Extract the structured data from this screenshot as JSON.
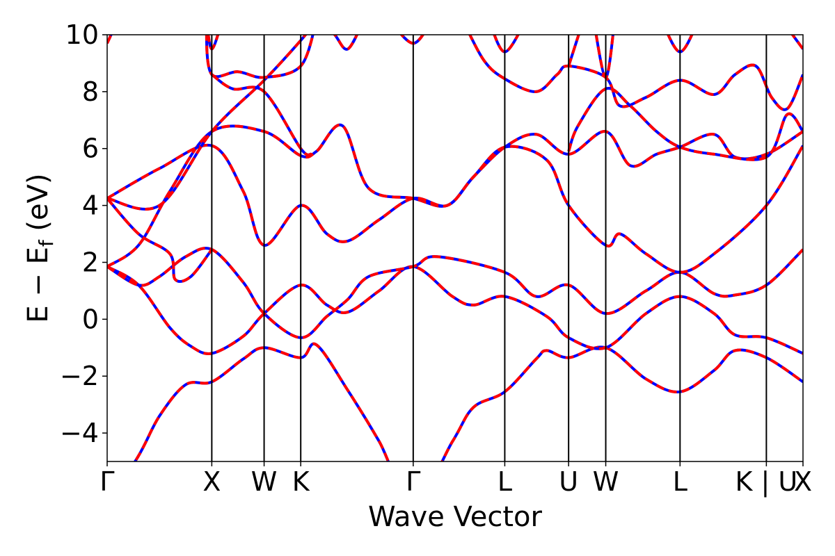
{
  "chart_data": {
    "type": "line",
    "xlabel": "Wave Vector",
    "ylabel": "E − E_f (eV)",
    "ylabel_main": "E − E",
    "ylabel_sub": "f",
    "ylabel_unit": " (eV)",
    "ylim": [
      -5,
      10
    ],
    "yticks": [
      -4,
      -2,
      0,
      2,
      4,
      6,
      8,
      10
    ],
    "ytick_labels": [
      "−4",
      "−2",
      "0",
      "2",
      "4",
      "6",
      "8",
      "10"
    ],
    "xlim": [
      0,
      13.3
    ],
    "kpoints": [
      {
        "label": "Γ",
        "x": 0.0
      },
      {
        "label": "X",
        "x": 2.0
      },
      {
        "label": "W",
        "x": 3.0
      },
      {
        "label": "K",
        "x": 3.7
      },
      {
        "label": "Γ",
        "x": 5.85
      },
      {
        "label": "L",
        "x": 7.6
      },
      {
        "label": "U",
        "x": 8.82
      },
      {
        "label": "W",
        "x": 9.53
      },
      {
        "label": "L",
        "x": 10.95
      },
      {
        "label": "K | U",
        "x": 12.6
      },
      {
        "label": "X",
        "x": 13.3
      }
    ],
    "styles": {
      "blue": "#0000ff",
      "red": "#ff0000",
      "red_dash": "dashed"
    },
    "grid": false,
    "series": [
      {
        "values": [
          [
            0,
            -6.5
          ],
          [
            0.6,
            -4.8
          ],
          [
            1.0,
            -3.4
          ],
          [
            1.5,
            -2.3
          ],
          [
            2.0,
            -2.2
          ],
          [
            2.6,
            -1.4
          ],
          [
            3.0,
            -1.0
          ],
          [
            3.7,
            -1.35
          ],
          [
            4.0,
            -0.9
          ],
          [
            4.6,
            -2.5
          ],
          [
            5.2,
            -4.3
          ],
          [
            5.85,
            -6.5
          ],
          [
            6.6,
            -4.3
          ],
          [
            7.0,
            -3.1
          ],
          [
            7.6,
            -2.55
          ],
          [
            8.2,
            -1.4
          ],
          [
            8.4,
            -1.1
          ],
          [
            8.82,
            -1.35
          ],
          [
            9.53,
            -1.0
          ],
          [
            10.3,
            -2.1
          ],
          [
            10.95,
            -2.55
          ],
          [
            11.6,
            -1.8
          ],
          [
            12.0,
            -1.1
          ],
          [
            12.6,
            -1.35
          ],
          [
            13.3,
            -2.2
          ]
        ]
      },
      {
        "values": [
          [
            0,
            1.85
          ],
          [
            0.6,
            1.2
          ],
          [
            1.2,
            -0.3
          ],
          [
            1.6,
            -0.95
          ],
          [
            2.0,
            -1.2
          ],
          [
            2.6,
            -0.6
          ],
          [
            3.0,
            0.2
          ],
          [
            3.7,
            1.2
          ],
          [
            4.2,
            0.5
          ],
          [
            4.6,
            0.25
          ],
          [
            5.2,
            1.0
          ],
          [
            5.85,
            1.85
          ],
          [
            6.6,
            0.8
          ],
          [
            7.0,
            0.5
          ],
          [
            7.6,
            0.8
          ],
          [
            8.4,
            0.1
          ],
          [
            8.82,
            -0.65
          ],
          [
            9.53,
            -1.0
          ],
          [
            10.3,
            0.2
          ],
          [
            10.95,
            0.8
          ],
          [
            11.6,
            0.2
          ],
          [
            12.0,
            -0.55
          ],
          [
            12.6,
            -0.65
          ],
          [
            13.3,
            -1.2
          ]
        ]
      },
      {
        "values": [
          [
            0,
            1.85
          ],
          [
            0.6,
            1.2
          ],
          [
            1.0,
            1.5
          ],
          [
            1.5,
            2.2
          ],
          [
            2.0,
            2.45
          ],
          [
            2.6,
            1.3
          ],
          [
            3.0,
            0.2
          ],
          [
            3.7,
            -0.65
          ],
          [
            4.2,
            0.1
          ],
          [
            4.6,
            0.7
          ],
          [
            5.0,
            1.5
          ],
          [
            5.85,
            1.85
          ],
          [
            6.3,
            2.2
          ],
          [
            7.6,
            1.65
          ],
          [
            8.2,
            0.8
          ],
          [
            8.82,
            1.2
          ],
          [
            9.53,
            0.2
          ],
          [
            10.3,
            1.0
          ],
          [
            10.95,
            1.65
          ],
          [
            11.6,
            0.9
          ],
          [
            12.0,
            0.85
          ],
          [
            12.6,
            1.2
          ],
          [
            13.3,
            2.45
          ]
        ]
      },
      {
        "values": [
          [
            0,
            1.85
          ],
          [
            0.6,
            2.6
          ],
          [
            1.2,
            4.5
          ],
          [
            2.0,
            6.6
          ],
          [
            3.0,
            6.6
          ],
          [
            3.7,
            5.75
          ],
          [
            4.0,
            5.9
          ],
          [
            4.5,
            6.8
          ],
          [
            5.0,
            4.6
          ],
          [
            5.85,
            4.25
          ],
          [
            6.5,
            4.0
          ],
          [
            7.0,
            5.0
          ],
          [
            7.6,
            6.05
          ],
          [
            8.2,
            6.5
          ],
          [
            8.82,
            5.8
          ],
          [
            9.53,
            6.6
          ],
          [
            10.0,
            5.4
          ],
          [
            10.5,
            5.8
          ],
          [
            10.95,
            6.05
          ],
          [
            11.6,
            6.5
          ],
          [
            12.0,
            5.7
          ],
          [
            12.6,
            5.8
          ],
          [
            13.3,
            6.6
          ]
        ]
      },
      {
        "values": [
          [
            0,
            4.25
          ],
          [
            0.6,
            3.0
          ],
          [
            1.2,
            2.3
          ],
          [
            1.3,
            1.4
          ],
          [
            1.6,
            1.5
          ],
          [
            2.0,
            2.45
          ]
        ]
      },
      {
        "values": [
          [
            0,
            4.25
          ],
          [
            1.0,
            5.3
          ],
          [
            2.0,
            6.1
          ],
          [
            2.6,
            4.5
          ],
          [
            3.0,
            2.6
          ],
          [
            3.7,
            4.0
          ],
          [
            4.2,
            3.0
          ],
          [
            4.6,
            2.75
          ],
          [
            5.2,
            3.5
          ],
          [
            5.85,
            4.25
          ],
          [
            6.5,
            4.0
          ],
          [
            7.0,
            5.0
          ],
          [
            7.6,
            6.05
          ],
          [
            8.4,
            5.6
          ],
          [
            8.82,
            4.0
          ],
          [
            9.53,
            2.6
          ],
          [
            9.8,
            3.0
          ],
          [
            10.3,
            2.3
          ],
          [
            10.95,
            1.65
          ],
          [
            11.6,
            2.3
          ],
          [
            12.6,
            4.0
          ],
          [
            13.3,
            6.1
          ]
        ]
      },
      {
        "values": [
          [
            0,
            4.25
          ],
          [
            1.0,
            4.0
          ],
          [
            2.0,
            6.6
          ],
          [
            3.0,
            8.4
          ],
          [
            3.7,
            9.8
          ],
          [
            4.0,
            10.5
          ]
        ]
      },
      {
        "values": [
          [
            2.0,
            10.5
          ],
          [
            1.9,
            10.0
          ],
          [
            2.0,
            8.6
          ],
          [
            2.5,
            8.7
          ],
          [
            3.0,
            8.5
          ],
          [
            3.7,
            8.9
          ],
          [
            4.0,
            10.5
          ]
        ]
      },
      {
        "values": [
          [
            1.9,
            10.5
          ],
          [
            2.0,
            9.5
          ],
          [
            2.2,
            10.5
          ]
        ]
      },
      {
        "values": [
          [
            2.0,
            8.6
          ],
          [
            2.4,
            8.1
          ],
          [
            3.0,
            8.0
          ],
          [
            3.7,
            6.0
          ],
          [
            3.9,
            5.8
          ]
        ]
      },
      {
        "values": [
          [
            4.1,
            10.5
          ],
          [
            4.35,
            10.0
          ],
          [
            4.6,
            9.5
          ],
          [
            4.9,
            10.5
          ]
        ]
      },
      {
        "values": [
          [
            0,
            9.7
          ],
          [
            0.2,
            10.5
          ]
        ]
      },
      {
        "values": [
          [
            5.4,
            10.5
          ],
          [
            5.85,
            9.7
          ],
          [
            6.2,
            10.5
          ]
        ]
      },
      {
        "values": [
          [
            6.8,
            10.5
          ],
          [
            7.2,
            9.1
          ],
          [
            7.6,
            8.45
          ],
          [
            8.2,
            8.0
          ],
          [
            8.6,
            8.6
          ],
          [
            8.82,
            8.9
          ],
          [
            9.53,
            8.5
          ],
          [
            9.8,
            7.5
          ],
          [
            10.3,
            7.8
          ],
          [
            10.95,
            8.4
          ],
          [
            11.6,
            7.9
          ],
          [
            12.0,
            8.6
          ],
          [
            12.4,
            8.9
          ],
          [
            12.7,
            7.8
          ],
          [
            13.0,
            7.4
          ],
          [
            13.3,
            8.6
          ]
        ]
      },
      {
        "values": [
          [
            7.3,
            10.5
          ],
          [
            7.6,
            9.4
          ],
          [
            8.0,
            10.5
          ]
        ]
      },
      {
        "values": [
          [
            8.82,
            5.9
          ],
          [
            9.0,
            6.8
          ],
          [
            9.53,
            8.1
          ],
          [
            10.0,
            7.5
          ],
          [
            10.5,
            6.6
          ],
          [
            10.95,
            6.05
          ],
          [
            11.6,
            5.8
          ],
          [
            12.6,
            5.7
          ],
          [
            13.0,
            7.2
          ],
          [
            13.3,
            6.6
          ]
        ]
      },
      {
        "values": [
          [
            8.82,
            8.9
          ],
          [
            9.1,
            10.5
          ]
        ]
      },
      {
        "values": [
          [
            9.3,
            10.5
          ],
          [
            9.53,
            8.5
          ],
          [
            9.7,
            10.5
          ]
        ]
      },
      {
        "values": [
          [
            10.6,
            10.5
          ],
          [
            10.95,
            9.4
          ],
          [
            11.3,
            10.5
          ]
        ]
      },
      {
        "values": [
          [
            12.9,
            10.5
          ],
          [
            13.3,
            9.5
          ]
        ]
      }
    ]
  }
}
